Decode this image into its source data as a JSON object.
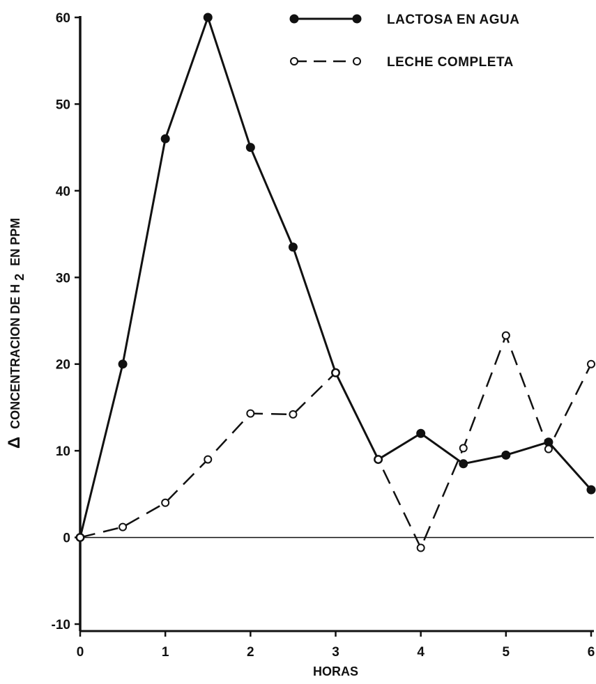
{
  "chart_data": {
    "type": "line",
    "xlabel": "HORAS",
    "ylabel": "CONCENTRACION DE H",
    "ylabel_prefix": "Δ",
    "ylabel_subscript": "2",
    "ylabel_suffix": "EN PPM",
    "xlim": [
      0,
      6
    ],
    "ylim": [
      -10,
      60
    ],
    "xticks": [
      "0",
      "1",
      "2",
      "3",
      "4",
      "5",
      "6"
    ],
    "yticks": [
      "-10",
      "0",
      "10",
      "20",
      "30",
      "40",
      "50",
      "60"
    ],
    "grid": false,
    "legend_position": "top-right",
    "series": [
      {
        "name": "LACTOSA EN AGUA",
        "style": "solid",
        "marker": "filled-circle",
        "color": "#111111",
        "x": [
          0,
          0.5,
          1,
          1.5,
          2,
          2.5,
          3,
          3.5,
          4,
          4.5,
          5,
          5.5,
          6
        ],
        "y": [
          0,
          20,
          46,
          60,
          45,
          33.5,
          19,
          9,
          12,
          8.5,
          9.5,
          11,
          5.5
        ]
      },
      {
        "name": "LECHE COMPLETA",
        "style": "dashed",
        "marker": "open-circle",
        "color": "#111111",
        "x": [
          0,
          0.5,
          1,
          1.5,
          2,
          2.5,
          3,
          3.5,
          4,
          4.5,
          5,
          5.5,
          6
        ],
        "y": [
          0,
          1.2,
          4,
          9,
          14.3,
          14.2,
          19,
          9,
          -1.2,
          10.3,
          23.3,
          10.2,
          20
        ]
      }
    ]
  }
}
